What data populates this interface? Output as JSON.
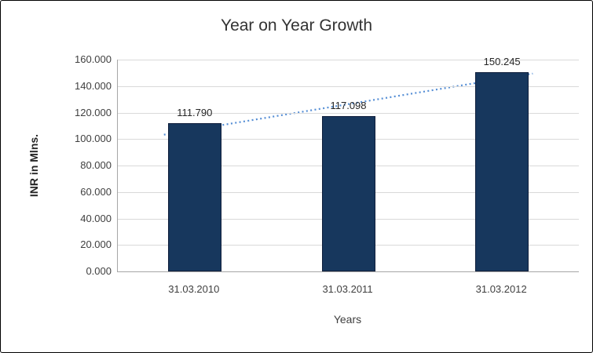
{
  "chart_data": {
    "type": "bar",
    "title": "Year on Year Growth",
    "categories": [
      "31.03.2010",
      "31.03.2011",
      "31.03.2012"
    ],
    "values": [
      111.79,
      117.098,
      150.245
    ],
    "value_labels": [
      "111.790",
      "117.098",
      "150.245"
    ],
    "xlabel": "Years",
    "ylabel": "INR in Mlns.",
    "ylim": [
      0,
      160
    ],
    "ytick_step": 20,
    "ytick_labels": [
      "0.000",
      "20.000",
      "40.000",
      "60.000",
      "80.000",
      "100.000",
      "120.000",
      "140.000",
      "160.000"
    ],
    "grid": true,
    "legend": "none",
    "trendline": {
      "type": "linear",
      "style": "dotted"
    },
    "colors": {
      "bar": "#17375d",
      "grid": "#d9d9d9",
      "axis": "#a6a6a6",
      "text": "#3f3f3f",
      "trendline": "#558ed5"
    }
  }
}
